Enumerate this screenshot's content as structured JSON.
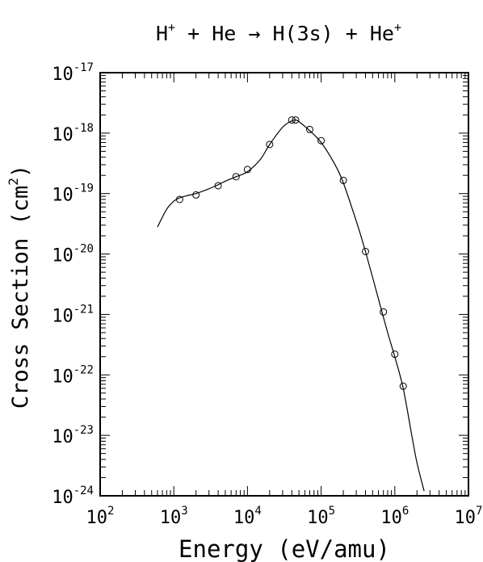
{
  "chart_data": {
    "type": "line",
    "title": {
      "pre": "H",
      "sup1": "+",
      "mid": " + He → H(3s) + He",
      "sup2": "+"
    },
    "xlabel": "Energy (eV/amu)",
    "ylabel": {
      "pre": "Cross Section (cm",
      "sup": "2",
      "post": ")"
    },
    "x_scale": "log",
    "y_scale": "log",
    "xlim": [
      100,
      10000000
    ],
    "ylim": [
      1e-24,
      1e-17
    ],
    "x_ticks": [
      {
        "base": "10",
        "exp": "2",
        "value": 100
      },
      {
        "base": "10",
        "exp": "3",
        "value": 1000
      },
      {
        "base": "10",
        "exp": "4",
        "value": 10000
      },
      {
        "base": "10",
        "exp": "5",
        "value": 100000
      },
      {
        "base": "10",
        "exp": "6",
        "value": 1000000
      },
      {
        "base": "10",
        "exp": "7",
        "value": 10000000
      }
    ],
    "y_ticks": [
      {
        "base": "10",
        "exp": "-17",
        "value": 1e-17
      },
      {
        "base": "10",
        "exp": "-18",
        "value": 1e-18
      },
      {
        "base": "10",
        "exp": "-19",
        "value": 1e-19
      },
      {
        "base": "10",
        "exp": "-20",
        "value": 1e-20
      },
      {
        "base": "10",
        "exp": "-21",
        "value": 1e-21
      },
      {
        "base": "10",
        "exp": "-22",
        "value": 1e-22
      },
      {
        "base": "10",
        "exp": "-23",
        "value": 1e-23
      },
      {
        "base": "10",
        "exp": "-24",
        "value": 1e-24
      }
    ],
    "grid": false,
    "series": [
      {
        "kind": "fit-curve",
        "x": [
          600,
          800,
          1000,
          1200,
          1500,
          2000,
          3000,
          4000,
          5000,
          7000,
          10000,
          15000,
          20000,
          30000,
          40000,
          45000,
          50000,
          70000,
          100000,
          150000,
          200000,
          300000,
          400000,
          600000,
          800000,
          1000000,
          1300000,
          1700000,
          2000000,
          2500000
        ],
        "y": [
          2.8e-20,
          5.5e-20,
          7.5e-20,
          8.5e-20,
          9.2e-20,
          1e-19,
          1.2e-19,
          1.4e-19,
          1.6e-19,
          1.9e-19,
          2.3e-19,
          3.7e-19,
          6.5e-19,
          1.25e-18,
          1.6e-18,
          1.65e-18,
          1.55e-18,
          1.1e-18,
          7e-19,
          3.2e-19,
          1.5e-19,
          3.5e-20,
          1.1e-20,
          1.8e-21,
          5e-22,
          2e-22,
          6e-23,
          1e-23,
          3.5e-24,
          1.2e-24
        ]
      },
      {
        "kind": "data-points",
        "x": [
          1200,
          2000,
          4000,
          7000,
          10000,
          20000,
          40000,
          45000,
          70000,
          100000,
          200000,
          400000,
          700000,
          1000000,
          1300000
        ],
        "y": [
          8e-20,
          9.5e-20,
          1.35e-19,
          1.9e-19,
          2.5e-19,
          6.5e-19,
          1.65e-18,
          1.65e-18,
          1.15e-18,
          7.5e-19,
          1.65e-19,
          1.1e-20,
          1.1e-21,
          2.2e-22,
          6.5e-23
        ]
      }
    ]
  }
}
